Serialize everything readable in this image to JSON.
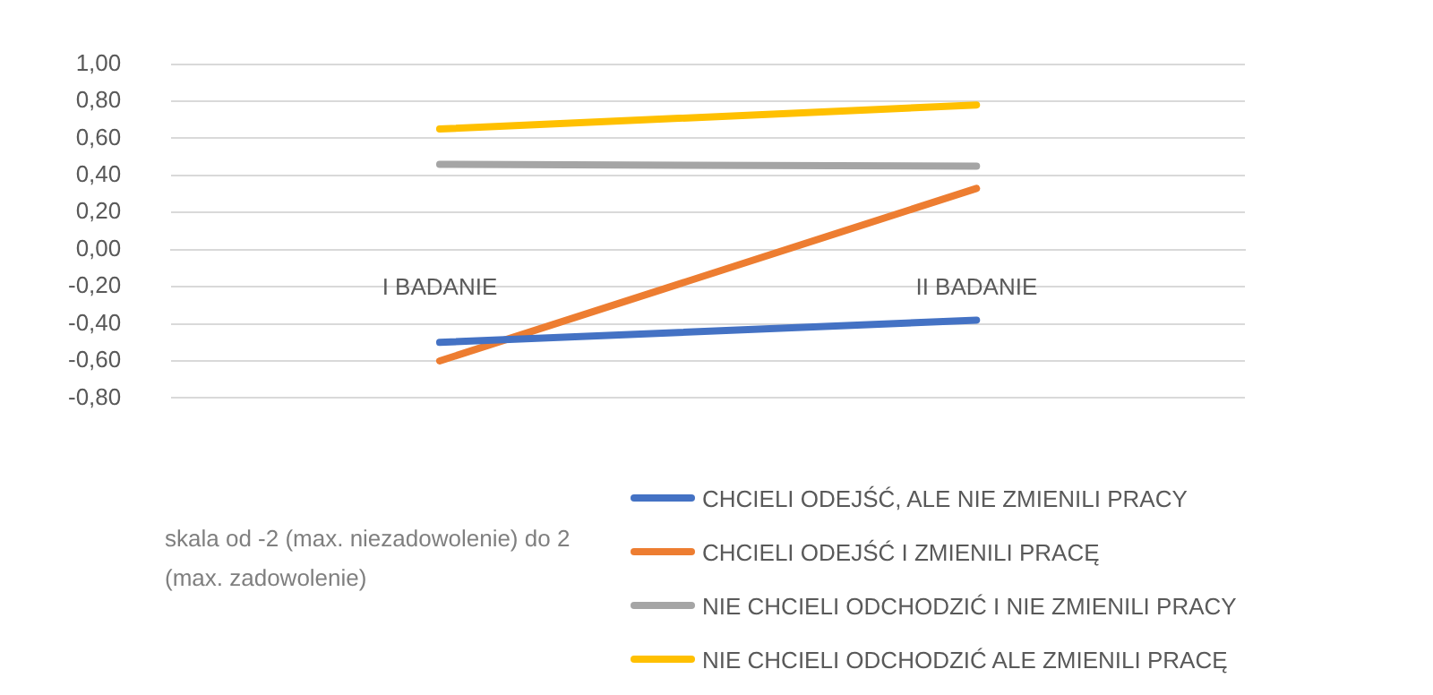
{
  "chart_data": {
    "type": "line",
    "categories": [
      "I BADANIE",
      "II BADANIE"
    ],
    "series": [
      {
        "name": "CHCIELI ODEJŚĆ, ALE NIE ZMIENILI PRACY",
        "color": "#4472c4",
        "values": [
          -0.5,
          -0.38
        ]
      },
      {
        "name": "CHCIELI ODEJŚĆ I ZMIENILI PRACĘ",
        "color": "#ed7d31",
        "values": [
          -0.6,
          0.33
        ]
      },
      {
        "name": "NIE CHCIELI ODCHODZIĆ I NIE ZMIENILI PRACY",
        "color": "#a5a5a5",
        "values": [
          0.46,
          0.45
        ]
      },
      {
        "name": "NIE CHCIELI ODCHODZIĆ ALE ZMIENILI PRACĘ",
        "color": "#ffc000",
        "values": [
          0.65,
          0.78
        ]
      }
    ],
    "ylim": [
      -0.8,
      1.0
    ],
    "yticks": [
      {
        "value": -0.8,
        "label": "-0,80"
      },
      {
        "value": -0.6,
        "label": "-0,60"
      },
      {
        "value": -0.4,
        "label": "-0,40"
      },
      {
        "value": -0.2,
        "label": "-0,20"
      },
      {
        "value": 0,
        "label": "0,00"
      },
      {
        "value": 0.2,
        "label": "0,20"
      },
      {
        "value": 0.4,
        "label": "0,40"
      },
      {
        "value": 0.6,
        "label": "0,60"
      },
      {
        "value": 0.8,
        "label": "0,80"
      },
      {
        "value": 1.0,
        "label": "1,00"
      }
    ],
    "grid": "y",
    "legend": "bottom right",
    "marker": "none",
    "line_style": "solid",
    "annotations": [
      "skala od -2 (max. niezadowolenie) do 2 (max. zadowolenie)"
    ]
  }
}
